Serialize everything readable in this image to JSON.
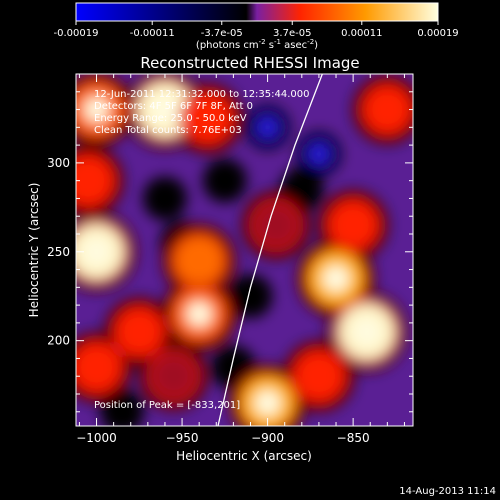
{
  "colorbar": {
    "tick_labels": [
      "-0.00019",
      "-0.00011",
      "-3.7e-05",
      "3.7e-05",
      "0.00011",
      "0.00019"
    ],
    "tick_values": [
      -0.00019,
      -0.00011,
      -3.7e-05,
      3.7e-05,
      0.00011,
      0.00019
    ],
    "range": [
      -0.00019,
      0.00019
    ],
    "units_main": "(photons cm",
    "units_sup1": "-2",
    "units_mid": " s",
    "units_sup2": "-1",
    "units_end": " asec",
    "units_sup3": "-2",
    "units_close": ")",
    "colors": [
      "#0000ff",
      "#000000",
      "#7a1fa2",
      "#ff2400",
      "#ff9a00",
      "#ffffe0"
    ]
  },
  "chart_data": {
    "type": "heatmap",
    "title": "Reconstructed RHESSI Image",
    "xlabel": "Heliocentric X (arcsec)",
    "ylabel": "Heliocentric Y (arcsec)",
    "xlim": [
      -1012,
      -815
    ],
    "ylim": [
      152,
      350
    ],
    "x_ticks": [
      -1000,
      -950,
      -900,
      -850
    ],
    "x_tick_labels": [
      "−1000",
      "−950",
      "−900",
      "−850"
    ],
    "y_ticks": [
      200,
      250,
      300
    ],
    "y_tick_labels": [
      "200",
      "250",
      "300"
    ],
    "annotations": [
      "12-Jun-2011 12:31:32.000 to 12:35:44.000",
      "Detectors: 4F 5F 6F 7F 8F, Att 0",
      "Energy Range: 25.0 - 50.0 keV",
      "Clean    Total counts: 7.76E+03"
    ],
    "peak_label": "Position of Peak = [-833,201]",
    "peak": [
      -833,
      201
    ],
    "limb_curve": [
      [
        -929,
        152
      ],
      [
        -920,
        190
      ],
      [
        -910,
        230
      ],
      [
        -898,
        270
      ],
      [
        -884,
        310
      ],
      [
        -868,
        350
      ]
    ],
    "blobs": [
      {
        "x": -1000,
        "y": 330,
        "level": 0.75
      },
      {
        "x": -960,
        "y": 330,
        "level": 0.95
      },
      {
        "x": -935,
        "y": 325,
        "level": 0.55
      },
      {
        "x": -1000,
        "y": 250,
        "level": 0.95
      },
      {
        "x": -1005,
        "y": 290,
        "level": 0.6
      },
      {
        "x": -1000,
        "y": 185,
        "level": 0.55
      },
      {
        "x": -940,
        "y": 245,
        "level": 0.7
      },
      {
        "x": -940,
        "y": 215,
        "level": 0.75
      },
      {
        "x": -975,
        "y": 205,
        "level": 0.5
      },
      {
        "x": -955,
        "y": 180,
        "level": 0.45
      },
      {
        "x": -895,
        "y": 265,
        "level": 0.45
      },
      {
        "x": -860,
        "y": 235,
        "level": 0.9
      },
      {
        "x": -842,
        "y": 205,
        "level": 1.0
      },
      {
        "x": -870,
        "y": 180,
        "level": 0.6
      },
      {
        "x": -850,
        "y": 265,
        "level": 0.55
      },
      {
        "x": -900,
        "y": 165,
        "level": 0.85
      },
      {
        "x": -830,
        "y": 330,
        "level": 0.5
      },
      {
        "x": -960,
        "y": 280,
        "level": -0.3
      },
      {
        "x": -925,
        "y": 290,
        "level": -0.35
      },
      {
        "x": -900,
        "y": 320,
        "level": -0.5
      },
      {
        "x": -870,
        "y": 305,
        "level": -0.45
      },
      {
        "x": -950,
        "y": 255,
        "level": -0.3
      },
      {
        "x": -910,
        "y": 225,
        "level": -0.3
      },
      {
        "x": -985,
        "y": 160,
        "level": -0.4
      },
      {
        "x": -920,
        "y": 185,
        "level": -0.25
      },
      {
        "x": -880,
        "y": 285,
        "level": -0.3
      }
    ]
  },
  "footer": {
    "timestamp": "14-Aug-2013 11:14"
  }
}
